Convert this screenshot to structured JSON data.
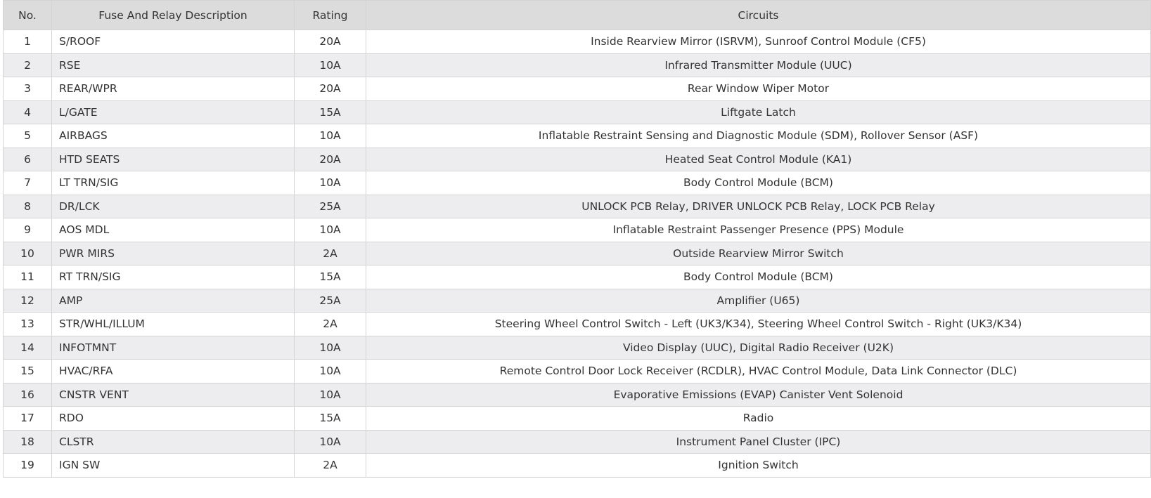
{
  "table": {
    "headers": [
      "No.",
      "Fuse And Relay Description",
      "Rating",
      "Circuits"
    ],
    "rows": [
      {
        "no": "1",
        "desc": "S/ROOF",
        "rating": "20A",
        "circuits": "Inside Rearview Mirror (ISRVM), Sunroof Control Module (CF5)"
      },
      {
        "no": "2",
        "desc": "RSE",
        "rating": "10A",
        "circuits": "Infrared Transmitter Module (UUC)"
      },
      {
        "no": "3",
        "desc": "REAR/WPR",
        "rating": "20A",
        "circuits": "Rear Window Wiper Motor"
      },
      {
        "no": "4",
        "desc": "L/GATE",
        "rating": "15A",
        "circuits": "Liftgate Latch"
      },
      {
        "no": "5",
        "desc": "AIRBAGS",
        "rating": "10A",
        "circuits": "Inflatable Restraint Sensing and Diagnostic Module (SDM), Rollover Sensor (ASF)"
      },
      {
        "no": "6",
        "desc": "HTD SEATS",
        "rating": "20A",
        "circuits": "Heated Seat Control Module (KA1)"
      },
      {
        "no": "7",
        "desc": "LT TRN/SIG",
        "rating": "10A",
        "circuits": "Body Control Module (BCM)"
      },
      {
        "no": "8",
        "desc": "DR/LCK",
        "rating": "25A",
        "circuits": "UNLOCK PCB Relay, DRIVER UNLOCK PCB Relay, LOCK PCB Relay"
      },
      {
        "no": "9",
        "desc": "AOS MDL",
        "rating": "10A",
        "circuits": "Inflatable Restraint Passenger Presence (PPS) Module"
      },
      {
        "no": "10",
        "desc": "PWR MIRS",
        "rating": "2A",
        "circuits": "Outside Rearview Mirror Switch"
      },
      {
        "no": "11",
        "desc": "RT TRN/SIG",
        "rating": "15A",
        "circuits": "Body Control Module (BCM)"
      },
      {
        "no": "12",
        "desc": "AMP",
        "rating": "25A",
        "circuits": "Amplifier (U65)"
      },
      {
        "no": "13",
        "desc": "STR/WHL/ILLUM",
        "rating": "2A",
        "circuits": "Steering Wheel Control Switch - Left (UK3/K34), Steering Wheel Control Switch - Right (UK3/K34)"
      },
      {
        "no": "14",
        "desc": "INFOTMNT",
        "rating": "10A",
        "circuits": "Video Display (UUC), Digital Radio Receiver (U2K)"
      },
      {
        "no": "15",
        "desc": "HVAC/RFA",
        "rating": "10A",
        "circuits": "Remote Control Door Lock Receiver (RCDLR), HVAC Control Module, Data Link Connector (DLC)"
      },
      {
        "no": "16",
        "desc": "CNSTR VENT",
        "rating": "10A",
        "circuits": "Evaporative Emissions (EVAP) Canister Vent Solenoid"
      },
      {
        "no": "17",
        "desc": "RDO",
        "rating": "15A",
        "circuits": "Radio"
      },
      {
        "no": "18",
        "desc": "CLSTR",
        "rating": "10A",
        "circuits": "Instrument Panel Cluster (IPC)"
      },
      {
        "no": "19",
        "desc": "IGN SW",
        "rating": "2A",
        "circuits": "Ignition Switch"
      }
    ]
  },
  "colors": {
    "header_bg": "#dcdcdc",
    "alt_row_bg": "#ededef",
    "border": "#d4d4d4",
    "text": "#333333"
  }
}
